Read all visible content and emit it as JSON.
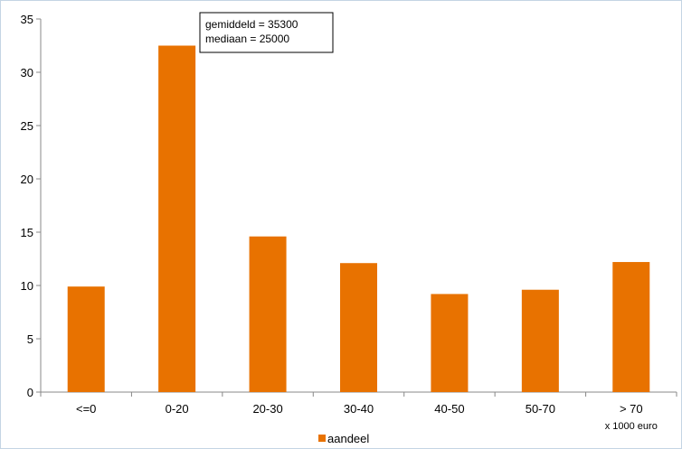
{
  "chart_data": {
    "type": "bar",
    "categories": [
      "<=0",
      "0-20",
      "20-30",
      "30-40",
      "40-50",
      "50-70",
      "> 70"
    ],
    "series": [
      {
        "name": "aandeel",
        "values": [
          9.9,
          32.5,
          14.6,
          12.1,
          9.2,
          9.6,
          12.2
        ]
      }
    ],
    "ylim": [
      0,
      35
    ],
    "yticks": [
      0,
      5,
      10,
      15,
      20,
      25,
      30,
      35
    ],
    "x_unit_label": "x 1000 euro",
    "annotation": [
      "gemiddeld = 35300",
      "mediaan = 25000"
    ],
    "legend_position": "bottom",
    "grid": false,
    "bar_color": "#E87200",
    "border_color": "#C4D5E4"
  }
}
